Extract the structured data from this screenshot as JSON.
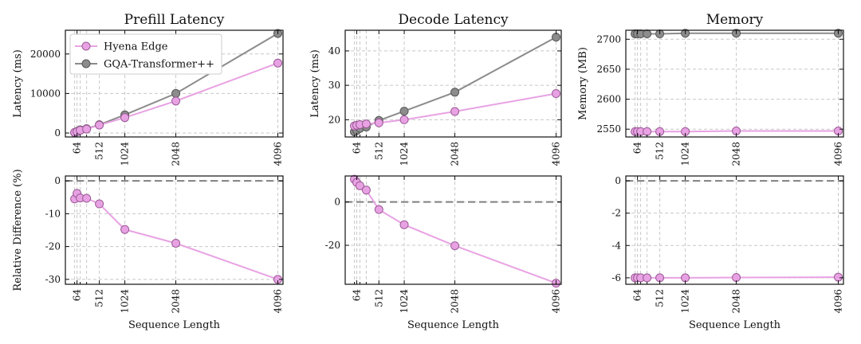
{
  "colors": {
    "hyena": "#e8a2e3",
    "hyena_edge": "#9a5a96",
    "gqa": "#8c8c8c",
    "gqa_edge": "#555555",
    "grid": "#c8c8c8",
    "zero": "#808080"
  },
  "xlabel": "Sequence Length",
  "chart_data": [
    {
      "type": "line",
      "title": "Prefill Latency",
      "xlabel": "",
      "ylabel": "Latency (ms)",
      "x": [
        16,
        64,
        128,
        256,
        512,
        1024,
        2048,
        4096
      ],
      "xticks": [
        64,
        512,
        1024,
        2048,
        4096
      ],
      "xlim": [
        -170,
        4200
      ],
      "ylim": [
        -1000,
        26000
      ],
      "yticks": [
        0,
        10000,
        20000
      ],
      "legend": "top-left",
      "grid": true,
      "series": [
        {
          "name": "Hyena Edge",
          "values": [
            150,
            350,
            700,
            1000,
            2000,
            3900,
            8100,
            17700
          ]
        },
        {
          "name": "GQA-Transformer++",
          "values": [
            100,
            400,
            800,
            1100,
            2100,
            4600,
            10000,
            25200
          ]
        }
      ]
    },
    {
      "type": "line",
      "title": "Decode Latency",
      "xlabel": "",
      "ylabel": "Latency (ms)",
      "x": [
        16,
        64,
        128,
        256,
        512,
        1024,
        2048,
        4096
      ],
      "xticks": [
        64,
        512,
        1024,
        2048,
        4096
      ],
      "xlim": [
        -170,
        4200
      ],
      "ylim": [
        15,
        46
      ],
      "yticks": [
        20,
        30,
        40
      ],
      "grid": true,
      "series": [
        {
          "name": "Hyena Edge",
          "values": [
            18.2,
            18.4,
            18.6,
            18.8,
            19.1,
            20.0,
            22.4,
            27.6
          ]
        },
        {
          "name": "GQA-Transformer++",
          "values": [
            16.5,
            16.9,
            17.5,
            17.9,
            19.8,
            22.5,
            28.0,
            44.0
          ]
        }
      ]
    },
    {
      "type": "line",
      "title": "Memory",
      "xlabel": "",
      "ylabel": "Memory (MB)",
      "x": [
        16,
        64,
        128,
        256,
        512,
        1024,
        2048,
        4096
      ],
      "xticks": [
        64,
        512,
        1024,
        2048,
        4096
      ],
      "xlim": [
        -170,
        4200
      ],
      "ylim": [
        2537,
        2715
      ],
      "yticks": [
        2550,
        2600,
        2650,
        2700
      ],
      "grid": true,
      "series": [
        {
          "name": "Hyena Edge",
          "values": [
            2546,
            2546,
            2546,
            2546,
            2546,
            2546,
            2547,
            2547
          ]
        },
        {
          "name": "GQA-Transformer++",
          "values": [
            2709,
            2709,
            2709,
            2709,
            2709,
            2710,
            2710,
            2710
          ]
        }
      ]
    },
    {
      "type": "line",
      "title": "",
      "xlabel": "Sequence Length",
      "ylabel": "Relative Difference (%)",
      "x": [
        16,
        64,
        128,
        256,
        512,
        1024,
        2048,
        4096
      ],
      "xticks": [
        64,
        512,
        1024,
        2048,
        4096
      ],
      "xlim": [
        -170,
        4200
      ],
      "ylim": [
        -31.5,
        1.5
      ],
      "yticks": [
        0,
        -10,
        -20,
        -30
      ],
      "grid": true,
      "zero_line": true,
      "series": [
        {
          "name": "Hyena Edge",
          "values": [
            -5.5,
            -3.8,
            -5.2,
            -5.3,
            -7.0,
            -14.8,
            -19.0,
            -30.0
          ]
        }
      ]
    },
    {
      "type": "line",
      "title": "",
      "xlabel": "Sequence Length",
      "ylabel": "",
      "x": [
        16,
        64,
        128,
        256,
        512,
        1024,
        2048,
        4096
      ],
      "xticks": [
        64,
        512,
        1024,
        2048,
        4096
      ],
      "xlim": [
        -170,
        4200
      ],
      "ylim": [
        -38,
        12
      ],
      "yticks": [
        0,
        -20
      ],
      "grid": true,
      "zero_line": true,
      "series": [
        {
          "name": "Hyena Edge",
          "values": [
            10.5,
            9.0,
            7.5,
            5.5,
            -3.5,
            -10.5,
            -20.2,
            -37.5
          ]
        }
      ]
    },
    {
      "type": "line",
      "title": "",
      "xlabel": "Sequence Length",
      "ylabel": "",
      "x": [
        16,
        64,
        128,
        256,
        512,
        1024,
        2048,
        4096
      ],
      "xticks": [
        64,
        512,
        1024,
        2048,
        4096
      ],
      "xlim": [
        -170,
        4200
      ],
      "ylim": [
        -6.4,
        0.3
      ],
      "yticks": [
        0,
        -2,
        -4,
        -6
      ],
      "grid": true,
      "zero_line": true,
      "series": [
        {
          "name": "Hyena Edge",
          "values": [
            -6.0,
            -6.0,
            -6.0,
            -6.0,
            -6.0,
            -6.0,
            -5.98,
            -5.96
          ]
        }
      ]
    }
  ]
}
